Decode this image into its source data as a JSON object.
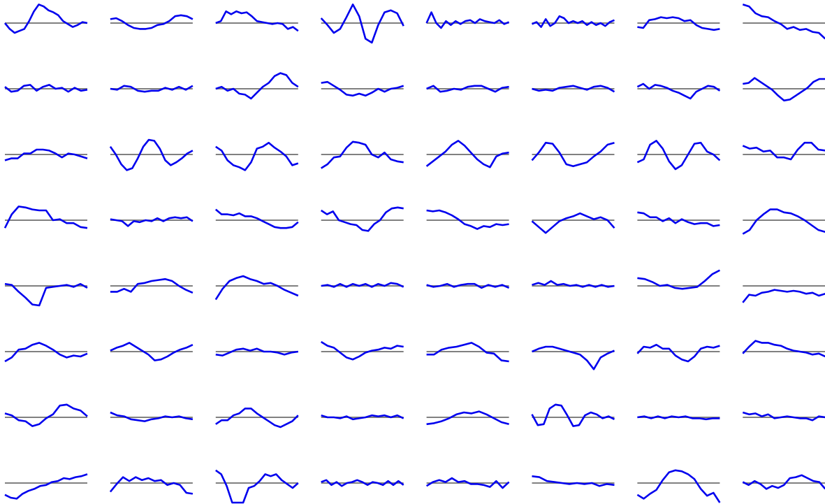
{
  "chart_data": {
    "type": "line",
    "layout": "small multiples",
    "rows": 8,
    "cols": 8,
    "baseline": 0,
    "ylim": [
      -1,
      1
    ],
    "axes_visible": false,
    "grid": false,
    "colors": {
      "series": "#0000ee",
      "baseline": "#808080",
      "background": "#ffffff"
    },
    "series": [
      {
        "values": [
          0.0,
          -0.3,
          -0.5,
          -0.4,
          -0.3,
          0.1,
          0.6,
          0.95,
          0.85,
          0.65,
          0.55,
          0.4,
          0.1,
          -0.05,
          -0.2,
          -0.1,
          0.05,
          0.0
        ]
      },
      {
        "values": [
          0.2,
          0.25,
          0.1,
          -0.1,
          -0.25,
          -0.3,
          -0.3,
          -0.25,
          -0.1,
          -0.05,
          0.1,
          0.35,
          0.4,
          0.35,
          0.2
        ]
      },
      {
        "values": [
          0.0,
          0.1,
          0.6,
          0.45,
          0.6,
          0.5,
          0.55,
          0.35,
          0.1,
          0.05,
          0.0,
          -0.05,
          0.0,
          -0.05,
          -0.3,
          -0.2,
          -0.4
        ]
      },
      {
        "values": [
          0.25,
          -0.1,
          -0.5,
          -0.3,
          0.3,
          0.95,
          0.35,
          -0.8,
          -1.0,
          -0.1,
          0.55,
          0.65,
          0.5,
          -0.15
        ]
      },
      {
        "values": [
          0.0,
          0.55,
          0.0,
          -0.25,
          0.1,
          -0.1,
          0.1,
          -0.05,
          0.1,
          0.15,
          0.0,
          0.2,
          0.1,
          0.05,
          0.0,
          0.15,
          -0.05,
          0.05
        ]
      },
      {
        "values": [
          -0.05,
          0.05,
          -0.2,
          0.2,
          -0.15,
          0.0,
          0.35,
          0.25,
          0.0,
          0.1,
          0.0,
          0.1,
          -0.1,
          0.05,
          -0.1,
          0.0,
          -0.15,
          0.05,
          0.15
        ]
      },
      {
        "values": [
          -0.2,
          -0.25,
          0.15,
          0.2,
          0.3,
          0.25,
          0.3,
          0.25,
          0.1,
          0.15,
          -0.1,
          -0.25,
          -0.3,
          -0.35,
          -0.3
        ]
      },
      {
        "values": [
          0.95,
          0.85,
          0.5,
          0.35,
          0.3,
          0.1,
          -0.05,
          -0.3,
          -0.2,
          -0.35,
          -0.3,
          -0.45,
          -0.5,
          -0.8
        ]
      },
      {
        "values": [
          0.1,
          -0.15,
          -0.1,
          0.15,
          0.2,
          -0.1,
          0.1,
          0.2,
          0.0,
          0.05,
          -0.15,
          0.05,
          -0.1,
          -0.05
        ]
      },
      {
        "values": [
          0.0,
          -0.05,
          0.15,
          0.1,
          -0.1,
          -0.15,
          -0.1,
          -0.1,
          0.05,
          -0.05,
          0.1,
          -0.05,
          0.15
        ]
      },
      {
        "values": [
          0.0,
          0.1,
          -0.1,
          0.0,
          -0.25,
          -0.3,
          -0.5,
          -0.2,
          0.1,
          0.3,
          0.65,
          0.8,
          0.7,
          0.3,
          0.1
        ]
      },
      {
        "values": [
          0.3,
          0.35,
          0.15,
          -0.05,
          -0.3,
          -0.35,
          -0.25,
          -0.35,
          -0.2,
          0.0,
          -0.15,
          0.0,
          0.05,
          0.15
        ]
      },
      {
        "values": [
          0.0,
          0.15,
          -0.15,
          -0.1,
          0.0,
          -0.05,
          0.1,
          0.15,
          0.15,
          0.0,
          -0.15,
          0.05,
          0.1
        ]
      },
      {
        "values": [
          0.0,
          -0.1,
          -0.05,
          -0.1,
          0.05,
          0.1,
          0.15,
          0.05,
          -0.05,
          0.1,
          0.15,
          0.05,
          -0.15
        ]
      },
      {
        "values": [
          0.1,
          0.25,
          0.0,
          0.2,
          0.15,
          0.05,
          -0.1,
          -0.2,
          -0.35,
          -0.5,
          -0.15,
          0.0,
          0.15,
          0.1,
          -0.1
        ]
      },
      {
        "values": [
          0.25,
          0.3,
          0.55,
          0.35,
          0.15,
          -0.05,
          -0.35,
          -0.6,
          -0.55,
          -0.35,
          -0.15,
          0.05,
          0.35,
          0.5,
          0.5
        ]
      },
      {
        "values": [
          -0.3,
          -0.2,
          -0.2,
          0.05,
          0.05,
          0.25,
          0.25,
          0.2,
          0.05,
          -0.15,
          0.05,
          0.0,
          -0.1,
          -0.2
        ]
      },
      {
        "values": [
          0.4,
          0.0,
          -0.5,
          -0.8,
          -0.7,
          -0.2,
          0.4,
          0.75,
          0.7,
          0.3,
          -0.3,
          -0.55,
          -0.4,
          -0.2,
          0.05,
          0.2
        ]
      },
      {
        "values": [
          0.4,
          0.2,
          -0.3,
          -0.55,
          -0.65,
          -0.8,
          -0.4,
          0.3,
          0.4,
          0.6,
          0.35,
          0.15,
          -0.1,
          -0.55,
          -0.45
        ]
      },
      {
        "values": [
          -0.7,
          -0.5,
          -0.15,
          -0.1,
          0.35,
          0.65,
          0.6,
          0.5,
          0.0,
          -0.15,
          0.1,
          -0.25,
          -0.35,
          -0.4
        ]
      },
      {
        "values": [
          -0.6,
          -0.35,
          -0.1,
          0.15,
          0.5,
          0.7,
          0.45,
          0.1,
          -0.25,
          -0.5,
          -0.65,
          -0.1,
          0.05,
          0.1
        ]
      },
      {
        "values": [
          -0.3,
          0.1,
          0.6,
          0.55,
          0.1,
          -0.5,
          -0.6,
          -0.5,
          -0.4,
          -0.1,
          0.15,
          0.5,
          0.6
        ]
      },
      {
        "values": [
          -0.4,
          -0.25,
          0.5,
          0.7,
          0.3,
          -0.35,
          -0.75,
          -0.55,
          0.0,
          0.55,
          0.6,
          0.15,
          0.0,
          -0.3
        ]
      },
      {
        "values": [
          0.45,
          0.3,
          0.35,
          0.15,
          0.2,
          -0.15,
          -0.15,
          -0.25,
          0.25,
          0.6,
          0.6,
          0.25,
          0.2
        ]
      },
      {
        "values": [
          -0.4,
          0.3,
          0.7,
          0.65,
          0.55,
          0.5,
          0.5,
          0.0,
          0.05,
          -0.15,
          -0.15,
          -0.35,
          -0.4
        ]
      },
      {
        "values": [
          0.05,
          0.0,
          -0.05,
          -0.3,
          -0.05,
          -0.1,
          0.0,
          -0.05,
          0.1,
          -0.05,
          0.1,
          0.15,
          0.1,
          0.15,
          -0.05
        ]
      },
      {
        "values": [
          0.55,
          0.3,
          0.3,
          0.25,
          0.35,
          0.2,
          0.2,
          0.1,
          -0.05,
          -0.2,
          -0.35,
          -0.4,
          -0.4,
          -0.35,
          -0.1
        ]
      },
      {
        "values": [
          0.5,
          0.3,
          0.45,
          0.0,
          -0.1,
          -0.2,
          -0.25,
          -0.5,
          -0.55,
          -0.2,
          0.0,
          0.4,
          0.6,
          0.65,
          0.6
        ]
      },
      {
        "values": [
          0.5,
          0.45,
          0.5,
          0.4,
          0.25,
          0.05,
          -0.2,
          -0.3,
          -0.45,
          -0.3,
          -0.35,
          -0.2,
          -0.25,
          -0.2
        ]
      },
      {
        "values": [
          -0.05,
          -0.35,
          -0.65,
          -0.35,
          -0.05,
          0.1,
          0.2,
          0.35,
          0.2,
          0.05,
          0.15,
          0.0,
          -0.4
        ]
      },
      {
        "values": [
          0.4,
          0.35,
          0.15,
          0.15,
          -0.05,
          0.1,
          -0.15,
          0.05,
          -0.1,
          -0.2,
          -0.15,
          -0.15,
          -0.3,
          -0.25
        ]
      },
      {
        "values": [
          -0.7,
          -0.5,
          0.0,
          0.3,
          0.55,
          0.55,
          0.4,
          0.35,
          0.2,
          0.0,
          -0.25,
          -0.5,
          -0.6
        ]
      },
      {
        "values": [
          0.1,
          0.05,
          -0.3,
          -0.6,
          -0.95,
          -1.0,
          -0.1,
          -0.05,
          0.0,
          0.05,
          -0.05,
          0.1,
          -0.1
        ]
      },
      {
        "values": [
          -0.3,
          -0.3,
          -0.15,
          -0.3,
          0.1,
          0.15,
          0.25,
          0.3,
          0.35,
          0.25,
          0.0,
          -0.2,
          -0.35
        ]
      },
      {
        "values": [
          -0.7,
          -0.15,
          0.25,
          0.4,
          0.5,
          0.35,
          0.25,
          0.1,
          0.15,
          0.0,
          -0.2,
          -0.35,
          -0.5
        ]
      },
      {
        "values": [
          0.0,
          0.05,
          -0.05,
          0.1,
          -0.05,
          0.1,
          0.0,
          0.1,
          -0.05,
          0.1,
          0.0,
          0.15,
          0.1,
          -0.05
        ]
      },
      {
        "values": [
          0.05,
          -0.05,
          0.0,
          0.1,
          -0.05,
          0.05,
          0.1,
          0.1,
          -0.1,
          0.05,
          -0.05,
          0.05,
          -0.1
        ]
      },
      {
        "values": [
          0.05,
          0.15,
          0.05,
          0.25,
          0.05,
          0.1,
          0.0,
          0.05,
          -0.05,
          0.05,
          -0.05,
          0.05,
          -0.05,
          0.0
        ]
      },
      {
        "values": [
          0.4,
          0.35,
          0.2,
          0.0,
          0.05,
          -0.1,
          -0.15,
          -0.1,
          -0.05,
          0.25,
          0.6,
          0.8
        ]
      },
      {
        "values": [
          -0.85,
          -0.45,
          -0.5,
          -0.35,
          -0.3,
          -0.2,
          -0.25,
          -0.3,
          -0.25,
          -0.3,
          -0.4,
          -0.35,
          -0.5,
          -0.4
        ]
      },
      {
        "values": [
          -0.5,
          -0.3,
          0.1,
          0.15,
          0.35,
          0.45,
          0.3,
          0.1,
          -0.15,
          -0.3,
          -0.2,
          -0.25,
          -0.1
        ]
      },
      {
        "values": [
          0.05,
          0.2,
          0.3,
          0.45,
          0.25,
          0.05,
          -0.15,
          -0.45,
          -0.4,
          -0.25,
          -0.05,
          0.1,
          0.2,
          0.35
        ]
      },
      {
        "values": [
          -0.15,
          -0.2,
          -0.05,
          0.1,
          0.15,
          0.05,
          0.15,
          0.0,
          0.0,
          -0.05,
          -0.15,
          -0.05,
          0.0
        ]
      },
      {
        "values": [
          0.5,
          0.3,
          0.2,
          -0.05,
          -0.3,
          -0.4,
          -0.25,
          -0.05,
          0.05,
          0.1,
          0.2,
          0.15,
          0.3,
          0.25
        ]
      },
      {
        "values": [
          -0.15,
          -0.15,
          0.1,
          0.2,
          0.25,
          0.35,
          0.45,
          0.25,
          -0.05,
          -0.1,
          -0.45,
          -0.5
        ]
      },
      {
        "values": [
          0.0,
          0.15,
          0.25,
          0.25,
          0.15,
          0.05,
          -0.05,
          -0.15,
          -0.45,
          -0.9,
          -0.3,
          -0.1,
          0.05
        ]
      },
      {
        "values": [
          -0.1,
          0.25,
          0.2,
          0.35,
          0.15,
          0.15,
          -0.2,
          -0.4,
          -0.5,
          -0.25,
          0.15,
          0.25,
          0.2,
          0.3
        ]
      },
      {
        "values": [
          -0.1,
          0.25,
          0.55,
          0.45,
          0.45,
          0.35,
          0.3,
          0.15,
          0.05,
          0.0,
          -0.05,
          -0.15,
          -0.1,
          -0.25
        ]
      },
      {
        "values": [
          0.2,
          0.1,
          -0.15,
          -0.2,
          -0.45,
          -0.35,
          -0.05,
          0.15,
          0.6,
          0.65,
          0.45,
          0.35,
          0.05
        ]
      },
      {
        "values": [
          0.25,
          0.1,
          0.05,
          -0.1,
          -0.15,
          -0.2,
          -0.1,
          -0.05,
          0.05,
          0.0,
          0.05,
          -0.05,
          -0.1
        ]
      },
      {
        "values": [
          -0.35,
          -0.15,
          -0.15,
          0.1,
          0.2,
          0.45,
          0.45,
          0.2,
          0.0,
          -0.2,
          -0.4,
          -0.5,
          -0.35,
          -0.2,
          0.1
        ]
      },
      {
        "values": [
          0.1,
          0.0,
          0.0,
          -0.05,
          0.05,
          -0.1,
          -0.05,
          0.0,
          0.1,
          0.05,
          0.1,
          0.0,
          0.1,
          -0.05
        ]
      },
      {
        "values": [
          -0.35,
          -0.3,
          -0.2,
          -0.05,
          0.15,
          0.25,
          0.2,
          0.3,
          0.15,
          -0.05,
          -0.25,
          -0.35
        ]
      },
      {
        "values": [
          0.15,
          -0.4,
          -0.35,
          0.45,
          0.65,
          0.6,
          0.1,
          -0.45,
          -0.4,
          0.1,
          0.25,
          0.15,
          -0.05,
          0.05,
          -0.1
        ]
      },
      {
        "values": [
          0.0,
          0.05,
          -0.05,
          0.05,
          -0.05,
          0.05,
          0.0,
          0.05,
          -0.05,
          -0.05,
          -0.1,
          -0.05,
          -0.05
        ]
      },
      {
        "values": [
          0.25,
          0.15,
          0.2,
          0.05,
          0.15,
          -0.05,
          0.0,
          0.05,
          0.0,
          -0.05,
          -0.05,
          -0.15,
          0.05,
          0.0
        ]
      },
      {
        "values": [
          -0.6,
          -0.75,
          -0.8,
          -0.55,
          -0.4,
          -0.3,
          -0.15,
          -0.1,
          0.05,
          0.1,
          0.25,
          0.2,
          0.3,
          0.35,
          0.45
        ]
      },
      {
        "values": [
          -0.45,
          -0.05,
          0.3,
          0.1,
          0.3,
          0.15,
          0.25,
          0.1,
          0.15,
          -0.1,
          0.0,
          -0.1,
          -0.5,
          -0.55
        ]
      },
      {
        "values": [
          0.65,
          0.45,
          -0.15,
          -1.0,
          -1.0,
          -1.0,
          -0.25,
          -0.15,
          0.1,
          0.45,
          0.35,
          0.45,
          0.15,
          -0.05,
          -0.25,
          0.0
        ]
      },
      {
        "values": [
          0.05,
          0.15,
          -0.1,
          0.05,
          -0.15,
          0.0,
          0.05,
          0.15,
          0.05,
          -0.1,
          0.05,
          0.0,
          -0.1,
          0.1,
          -0.1,
          0.1,
          -0.1
        ]
      },
      {
        "values": [
          -0.15,
          0.05,
          0.15,
          0.05,
          0.25,
          0.05,
          0.1,
          -0.05,
          -0.05,
          -0.1,
          -0.2,
          0.1,
          -0.25,
          0.05
        ]
      },
      {
        "values": [
          0.35,
          0.3,
          0.1,
          0.05,
          0.0,
          -0.05,
          0.0,
          -0.05,
          0.0,
          -0.15,
          -0.05,
          -0.1
        ]
      },
      {
        "values": [
          -0.6,
          -0.8,
          -0.55,
          -0.35,
          0.15,
          0.55,
          0.65,
          0.6,
          0.45,
          0.2,
          -0.3,
          -0.65,
          -0.5,
          -1.0
        ]
      },
      {
        "values": [
          0.05,
          -0.1,
          0.1,
          -0.05,
          -0.3,
          -0.15,
          -0.25,
          -0.1,
          0.25,
          0.3,
          0.4,
          0.25,
          0.1,
          0.05,
          -0.3
        ]
      }
    ]
  }
}
